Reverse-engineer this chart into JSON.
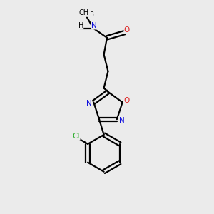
{
  "background_color": "#ebebeb",
  "atom_colors": {
    "C": "#000000",
    "N": "#1010dd",
    "O": "#dd2222",
    "Cl": "#22aa22",
    "H": "#000000"
  },
  "bond_color": "#000000",
  "figsize": [
    3.0,
    3.0
  ],
  "dpi": 100,
  "xlim": [
    0,
    10
  ],
  "ylim": [
    0,
    10
  ]
}
